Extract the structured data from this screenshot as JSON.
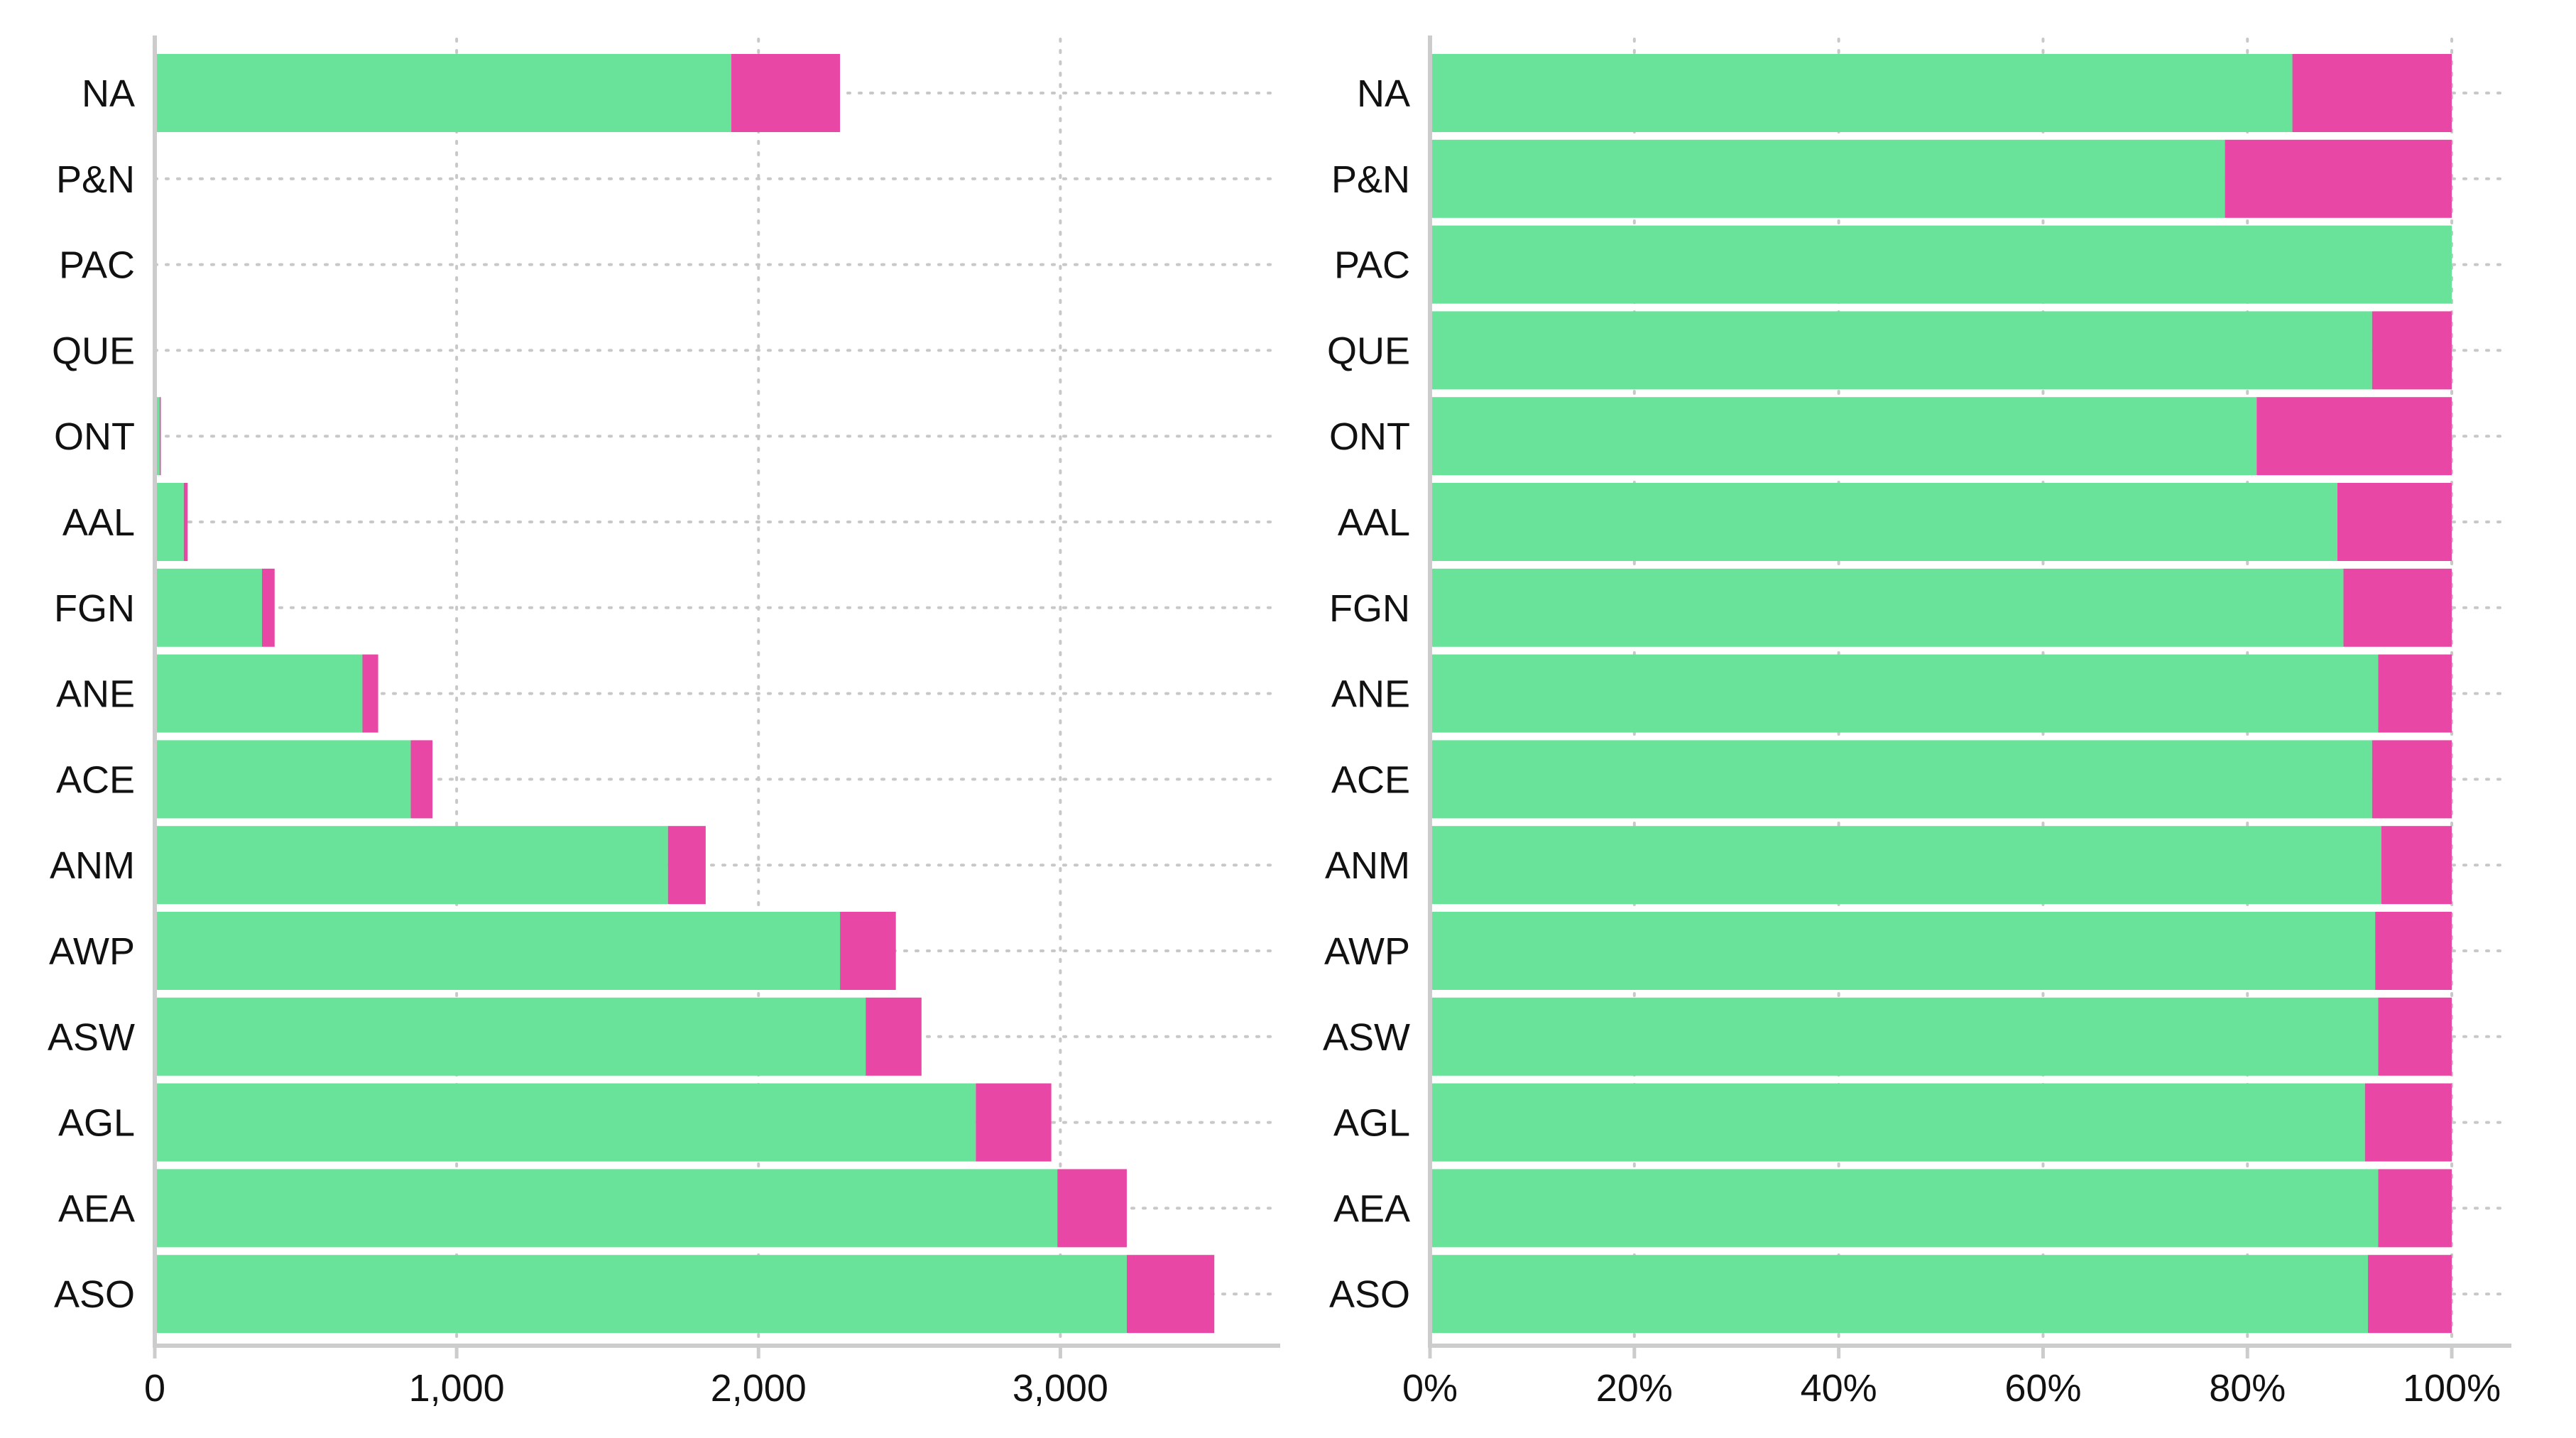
{
  "colors": {
    "green": "#69e29a",
    "pink": "#e947a6",
    "axis": "#cccccc",
    "grid": "#c8c8c8"
  },
  "chart_data": [
    {
      "type": "bar",
      "orientation": "horizontal",
      "stacked": true,
      "categories": [
        "NA",
        "P&N",
        "PAC",
        "QUE",
        "ONT",
        "AAL",
        "FGN",
        "ANE",
        "ACE",
        "ANM",
        "AWP",
        "ASW",
        "AGL",
        "AEA",
        "ASO"
      ],
      "series": [
        {
          "color": "#69e29a",
          "values": [
            1910,
            1,
            1,
            5,
            16,
            96,
            355,
            688,
            848,
            1700,
            2270,
            2355,
            2720,
            2990,
            3220
          ]
        },
        {
          "color": "#e947a6",
          "values": [
            360,
            0,
            0,
            1,
            4,
            13,
            42,
            52,
            72,
            125,
            185,
            185,
            250,
            230,
            290
          ]
        }
      ],
      "xlim": [
        0,
        3700
      ],
      "xticks": [
        0,
        1000,
        2000,
        3000
      ],
      "xtick_labels": [
        "0",
        "1,000",
        "2,000",
        "3,000"
      ],
      "grid": true
    },
    {
      "type": "bar",
      "orientation": "horizontal",
      "stacked": true,
      "normalized": true,
      "categories": [
        "NA",
        "P&N",
        "PAC",
        "QUE",
        "ONT",
        "AAL",
        "FGN",
        "ANE",
        "ACE",
        "ANM",
        "AWP",
        "ASW",
        "AGL",
        "AEA",
        "ASO"
      ],
      "series": [
        {
          "color": "#69e29a",
          "values": [
            0.844,
            0.778,
            1.0,
            0.922,
            0.809,
            0.888,
            0.894,
            0.928,
            0.922,
            0.931,
            0.925,
            0.928,
            0.915,
            0.928,
            0.918
          ]
        },
        {
          "color": "#e947a6",
          "values": [
            0.156,
            0.222,
            0.0,
            0.078,
            0.191,
            0.112,
            0.106,
            0.072,
            0.078,
            0.069,
            0.075,
            0.072,
            0.085,
            0.072,
            0.082
          ]
        }
      ],
      "xlim": [
        0,
        1.05
      ],
      "xticks": [
        0,
        0.2,
        0.4,
        0.6,
        0.8,
        1.0
      ],
      "xtick_labels": [
        "0%",
        "20%",
        "40%",
        "60%",
        "80%",
        "100%"
      ],
      "grid": true
    }
  ]
}
